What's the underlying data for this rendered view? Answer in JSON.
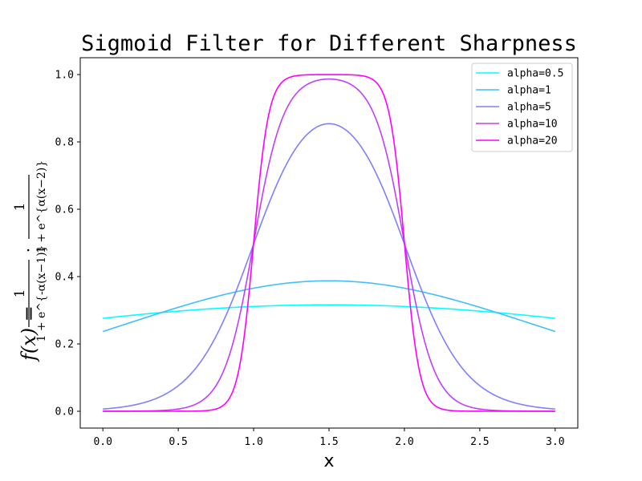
{
  "chart_data": {
    "type": "line",
    "title": "Sigmoid Filter for Different Sharpness",
    "xlabel": "x",
    "ylabel": {
      "lhs": "f(x) =",
      "frac1_num": "1",
      "frac1_den": "1 + e^{-α(x−1)}",
      "dot": "·",
      "frac2_num": "1",
      "frac2_den": "1 + e^{α(x−2)}"
    },
    "xlim": [
      -0.15,
      3.15
    ],
    "ylim": [
      -0.05,
      1.05
    ],
    "x_ticks": [
      0.0,
      0.5,
      1.0,
      1.5,
      2.0,
      2.5,
      3.0
    ],
    "x_tick_labels": [
      "0.0",
      "0.5",
      "1.0",
      "1.5",
      "2.0",
      "2.5",
      "3.0"
    ],
    "y_ticks": [
      0.0,
      0.2,
      0.4,
      0.6,
      0.8,
      1.0
    ],
    "y_tick_labels": [
      "0.0",
      "0.2",
      "0.4",
      "0.6",
      "0.8",
      "1.0"
    ],
    "grid": false,
    "legend_position": "top-right",
    "x_domain": [
      0,
      3
    ],
    "function": "1/(1+exp(-alpha*(x-1))) * 1/(1+exp(alpha*(x-2)))",
    "series": [
      {
        "name": "alpha=0.5",
        "alpha": 0.5,
        "color": "#00ffff"
      },
      {
        "name": "alpha=1",
        "alpha": 1,
        "color": "#3fbfff"
      },
      {
        "name": "alpha=5",
        "alpha": 5,
        "color": "#7f7fff"
      },
      {
        "name": "alpha=10",
        "alpha": 10,
        "color": "#bf3fff"
      },
      {
        "name": "alpha=20",
        "alpha": 20,
        "color": "#ff00ff"
      }
    ]
  }
}
